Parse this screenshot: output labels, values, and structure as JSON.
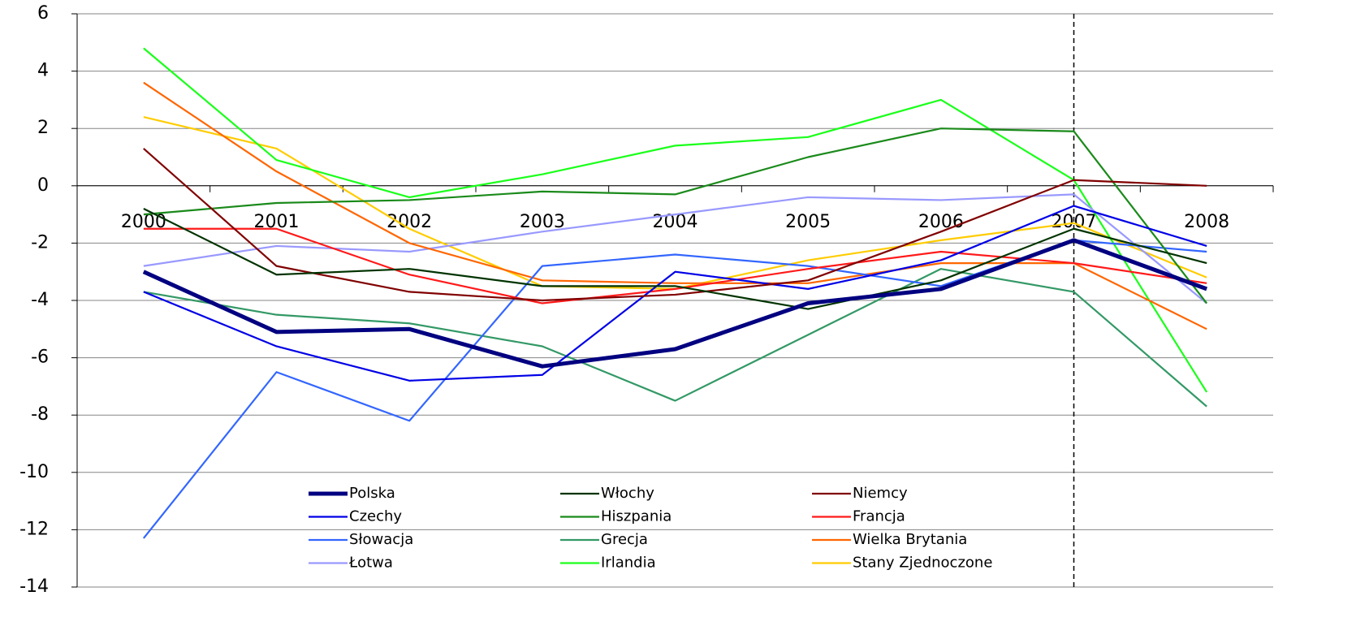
{
  "chart_data": {
    "type": "line",
    "categories": [
      "2000",
      "2001",
      "2002",
      "2003",
      "2004",
      "2005",
      "2006",
      "2007",
      "2008"
    ],
    "ylim": [
      -14,
      6
    ],
    "yticks": [
      -14,
      -12,
      -10,
      -8,
      -6,
      -4,
      -2,
      0,
      2,
      4,
      6
    ],
    "grid": true,
    "series": [
      {
        "name": "Polska",
        "color": "#000080",
        "bold": true,
        "values": [
          -3,
          -5.1,
          -5,
          -6.3,
          -5.7,
          -4.1,
          -3.6,
          -1.9,
          -3.6
        ]
      },
      {
        "name": "Włochy",
        "color": "#003300",
        "values": [
          -0.8,
          -3.1,
          -2.9,
          -3.5,
          -3.5,
          -4.3,
          -3.3,
          -1.5,
          -2.7
        ]
      },
      {
        "name": "Niemcy",
        "color": "#800000",
        "values": [
          1.3,
          -2.8,
          -3.7,
          -4.0,
          -3.8,
          -3.3,
          -1.6,
          0.2,
          0.0
        ]
      },
      {
        "name": "Czechy",
        "color": "#0000e6",
        "values": [
          -3.7,
          -5.6,
          -6.8,
          -6.6,
          -3.0,
          -3.6,
          -2.6,
          -0.7,
          -2.1
        ]
      },
      {
        "name": "Hiszpania",
        "color": "#1a8a1a",
        "values": [
          -1.0,
          -0.6,
          -0.5,
          -0.2,
          -0.3,
          1.0,
          2.0,
          1.9,
          -4.1
        ]
      },
      {
        "name": "Francja",
        "color": "#ff1a1a",
        "values": [
          -1.5,
          -1.5,
          -3.1,
          -4.1,
          -3.6,
          -2.9,
          -2.3,
          -2.7,
          -3.4
        ]
      },
      {
        "name": "Słowacja",
        "color": "#3366ff",
        "values": [
          -12.3,
          -6.5,
          -8.2,
          -2.8,
          -2.4,
          -2.8,
          -3.5,
          -1.9,
          -2.3
        ]
      },
      {
        "name": "Grecja",
        "color": "#339966",
        "values": [
          -3.7,
          -4.5,
          -4.8,
          -5.6,
          -7.5,
          -5.2,
          -2.9,
          -3.7,
          -7.7
        ]
      },
      {
        "name": "Wielka Brytania",
        "color": "#ff6600",
        "values": [
          3.6,
          0.5,
          -2.0,
          -3.3,
          -3.4,
          -3.4,
          -2.7,
          -2.7,
          -5.0
        ]
      },
      {
        "name": "Łotwa",
        "color": "#9999ff",
        "values": [
          -2.8,
          -2.1,
          -2.3,
          -1.6,
          -1.0,
          -0.4,
          -0.5,
          -0.3,
          -4.1
        ]
      },
      {
        "name": "Irlandia",
        "color": "#1aff1a",
        "values": [
          4.8,
          0.9,
          -0.4,
          0.4,
          1.4,
          1.7,
          3.0,
          0.2,
          -7.2
        ]
      },
      {
        "name": "Stany Zjednoczone",
        "color": "#ffcc00",
        "values": [
          2.4,
          1.3,
          -1.5,
          -3.5,
          -3.6,
          -2.6,
          -1.9,
          -1.3,
          -3.2
        ]
      }
    ]
  }
}
